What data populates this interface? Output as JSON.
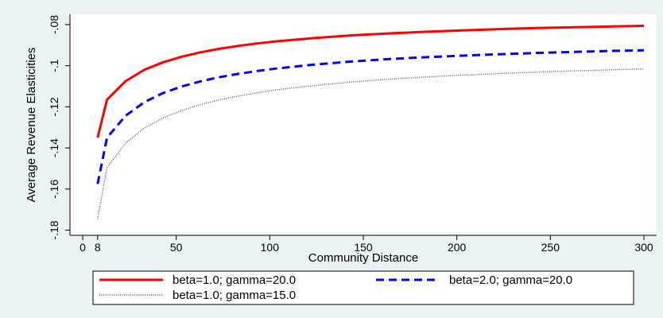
{
  "chart_data": {
    "type": "line",
    "xlabel": "Community Distance",
    "ylabel": "Average Revenue Elasticities",
    "x_ticks": [
      0,
      8,
      50,
      100,
      150,
      200,
      250,
      300
    ],
    "x_tick_labels": [
      "0",
      "8",
      "50",
      "100",
      "150",
      "200",
      "250",
      "300"
    ],
    "y_ticks": [
      -0.18,
      -0.16,
      -0.14,
      -0.12,
      -0.1,
      -0.08
    ],
    "y_tick_labels": [
      "-.18",
      "-.16",
      "-.14",
      "-.12",
      "-.1",
      "-.08"
    ],
    "xlim": [
      0,
      300
    ],
    "ylim": [
      -0.1825,
      -0.075
    ],
    "grid": false,
    "legend_position": "bottom",
    "x": [
      8,
      13,
      23,
      33,
      43,
      53,
      63,
      73,
      83,
      93,
      103,
      123,
      143,
      163,
      183,
      203,
      223,
      243,
      263,
      283,
      300
    ],
    "series": [
      {
        "name": "beta=1.0; gamma=20.0",
        "color": "#ff0000",
        "style": "solid",
        "values": [
          -0.135,
          -0.1165,
          -0.1075,
          -0.1019,
          -0.0983,
          -0.0956,
          -0.0935,
          -0.0918,
          -0.0904,
          -0.0892,
          -0.0882,
          -0.0866,
          -0.0853,
          -0.0843,
          -0.0835,
          -0.0828,
          -0.0822,
          -0.0817,
          -0.0813,
          -0.0809,
          -0.0806
        ]
      },
      {
        "name": "beta=2.0; gamma=20.0",
        "color": "#0000ff",
        "style": "dashed",
        "values": [
          -0.1575,
          -0.135,
          -0.1243,
          -0.1177,
          -0.1133,
          -0.1101,
          -0.1076,
          -0.1056,
          -0.104,
          -0.1026,
          -0.1014,
          -0.0995,
          -0.098,
          -0.0968,
          -0.0959,
          -0.0951,
          -0.0944,
          -0.0938,
          -0.0933,
          -0.0928,
          -0.0925
        ]
      },
      {
        "name": "beta=1.0; gamma=15.0",
        "color": "#555555",
        "style": "dotted",
        "values": [
          -0.1745,
          -0.1495,
          -0.1376,
          -0.1303,
          -0.1254,
          -0.1218,
          -0.1189,
          -0.1166,
          -0.1148,
          -0.1132,
          -0.1118,
          -0.1097,
          -0.108,
          -0.1066,
          -0.1055,
          -0.1046,
          -0.1038,
          -0.1031,
          -0.1025,
          -0.102,
          -0.1016
        ]
      }
    ]
  }
}
